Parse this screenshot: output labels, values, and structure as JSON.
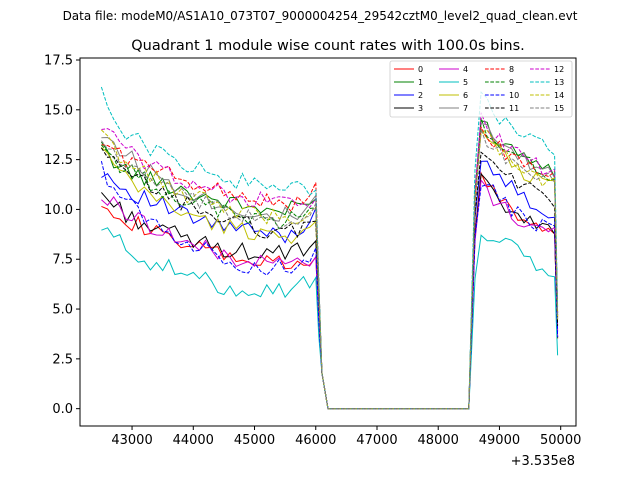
{
  "suptitle": "Data file: modeM0/AS1A10_073T07_9000004254_29542cztM0_level2_quad_clean.evt",
  "chart_data": {
    "type": "line",
    "title": "Quadrant 1 module wise count rates with 100.0s bins.",
    "xlabel": "",
    "ylabel": "",
    "offset_label": "+3.535e8",
    "xlim": [
      42150,
      50250
    ],
    "ylim": [
      -0.87,
      17.6
    ],
    "xticks": [
      43000,
      44000,
      45000,
      46000,
      47000,
      48000,
      49000,
      50000
    ],
    "xtick_labels": [
      "43000",
      "44000",
      "45000",
      "46000",
      "47000",
      "48000",
      "49000",
      "50000"
    ],
    "yticks": [
      0.0,
      2.5,
      5.0,
      7.5,
      10.0,
      12.5,
      15.0,
      17.5
    ],
    "ytick_labels": [
      "0.0",
      "2.5",
      "5.0",
      "7.5",
      "10.0",
      "12.5",
      "15.0",
      "17.5"
    ],
    "legend_position": "top-right",
    "series": [
      {
        "name": "0",
        "color": "#ff0000",
        "dash": "solid",
        "seg1": [
          10.6,
          9.5,
          9.0,
          8.5,
          8.0,
          7.8,
          7.5,
          7.3,
          7.2,
          7.1
        ],
        "seg2": [
          11.7,
          10.8,
          10.0,
          9.4,
          9.1,
          8.8
        ]
      },
      {
        "name": "1",
        "color": "#008000",
        "dash": "solid",
        "seg1": [
          13.0,
          12.0,
          11.5,
          11.2,
          10.8,
          10.5,
          10.2,
          10.0,
          9.9,
          10.3
        ],
        "seg2": [
          14.5,
          13.6,
          13.1,
          12.8,
          12.3,
          12.0
        ]
      },
      {
        "name": "2",
        "color": "#0000ff",
        "dash": "solid",
        "seg1": [
          12.0,
          11.0,
          10.5,
          10.0,
          9.5,
          9.2,
          9.0,
          8.8,
          8.7,
          9.2
        ],
        "seg2": [
          12.8,
          11.9,
          11.1,
          10.5,
          10.0,
          9.7
        ]
      },
      {
        "name": "3",
        "color": "#000000",
        "dash": "solid",
        "seg1": [
          10.8,
          9.8,
          9.2,
          8.8,
          8.4,
          8.1,
          7.9,
          7.8,
          7.8,
          8.0
        ],
        "seg2": [
          11.5,
          10.5,
          9.9,
          9.4,
          9.1,
          8.9
        ]
      },
      {
        "name": "4",
        "color": "#cc00cc",
        "dash": "solid",
        "seg1": [
          10.6,
          9.9,
          9.3,
          8.7,
          8.2,
          7.8,
          7.5,
          7.3,
          7.3,
          7.4
        ],
        "seg2": [
          11.2,
          10.4,
          9.8,
          9.3,
          9.1,
          9.0
        ]
      },
      {
        "name": "5",
        "color": "#00bfbf",
        "dash": "solid",
        "seg1": [
          9.0,
          8.2,
          7.4,
          7.0,
          6.6,
          6.2,
          6.0,
          6.0,
          6.0,
          6.3
        ],
        "seg2": [
          8.7,
          8.7,
          8.1,
          7.6,
          7.1,
          6.7
        ]
      },
      {
        "name": "6",
        "color": "#bfbf00",
        "dash": "solid",
        "seg1": [
          13.0,
          11.5,
          10.8,
          10.2,
          9.6,
          9.2,
          9.0,
          8.8,
          8.7,
          8.9
        ],
        "seg2": [
          13.9,
          13.0,
          12.3,
          11.8,
          11.5,
          11.3
        ]
      },
      {
        "name": "7",
        "color": "#808080",
        "dash": "solid",
        "seg1": [
          13.9,
          12.8,
          12.0,
          11.3,
          10.8,
          10.3,
          10.0,
          9.8,
          9.7,
          9.9
        ],
        "seg2": [
          14.2,
          13.4,
          12.9,
          12.4,
          12.0,
          11.7
        ]
      },
      {
        "name": "8",
        "color": "#ff0000",
        "dash": "dashed",
        "seg1": [
          13.4,
          12.6,
          12.1,
          11.7,
          11.4,
          11.0,
          10.7,
          10.5,
          10.2,
          10.4
        ],
        "seg2": [
          13.8,
          13.2,
          12.7,
          12.2,
          11.8,
          11.5
        ]
      },
      {
        "name": "9",
        "color": "#008000",
        "dash": "dashed",
        "seg1": [
          13.2,
          12.0,
          11.4,
          10.8,
          10.3,
          10.0,
          9.7,
          9.5,
          9.4,
          9.8
        ],
        "seg2": [
          14.3,
          13.5,
          12.9,
          12.4,
          12.0,
          11.7
        ]
      },
      {
        "name": "10",
        "color": "#0000ff",
        "dash": "dashed",
        "seg1": [
          12.0,
          10.5,
          9.5,
          8.8,
          8.2,
          7.7,
          7.3,
          7.1,
          7.0,
          7.3
        ],
        "seg2": [
          11.5,
          10.7,
          10.0,
          9.5,
          9.2,
          9.0
        ]
      },
      {
        "name": "11",
        "color": "#000000",
        "dash": "dashed",
        "seg1": [
          12.8,
          11.8,
          11.2,
          10.6,
          10.1,
          9.7,
          9.3,
          9.0,
          8.8,
          9.3
        ],
        "seg2": [
          13.0,
          12.2,
          11.6,
          11.1,
          10.7,
          10.4
        ]
      },
      {
        "name": "12",
        "color": "#cc00cc",
        "dash": "dashed",
        "seg1": [
          14.3,
          13.0,
          12.3,
          11.8,
          11.3,
          10.9,
          10.6,
          10.4,
          10.3,
          10.4
        ],
        "seg2": [
          14.6,
          13.6,
          13.0,
          12.5,
          12.1,
          12.0
        ]
      },
      {
        "name": "13",
        "color": "#00bfbf",
        "dash": "dashed",
        "seg1": [
          15.7,
          14.0,
          13.1,
          12.6,
          12.1,
          11.7,
          11.4,
          11.2,
          11.0,
          11.1
        ],
        "seg2": [
          16.0,
          14.7,
          14.0,
          13.6,
          13.2,
          12.8
        ]
      },
      {
        "name": "14",
        "color": "#bfbf00",
        "dash": "dashed",
        "seg1": [
          13.7,
          12.5,
          11.7,
          11.1,
          10.6,
          10.2,
          9.9,
          9.7,
          9.6,
          9.8
        ],
        "seg2": [
          14.1,
          13.2,
          12.5,
          11.9,
          11.5,
          11.2
        ]
      },
      {
        "name": "15",
        "color": "#808080",
        "dash": "dashed",
        "seg1": [
          13.5,
          12.3,
          11.5,
          10.9,
          10.4,
          10.0,
          9.7,
          9.5,
          9.4,
          9.6
        ],
        "seg2": [
          13.8,
          13.0,
          12.4,
          11.9,
          11.6,
          11.3
        ]
      }
    ]
  }
}
